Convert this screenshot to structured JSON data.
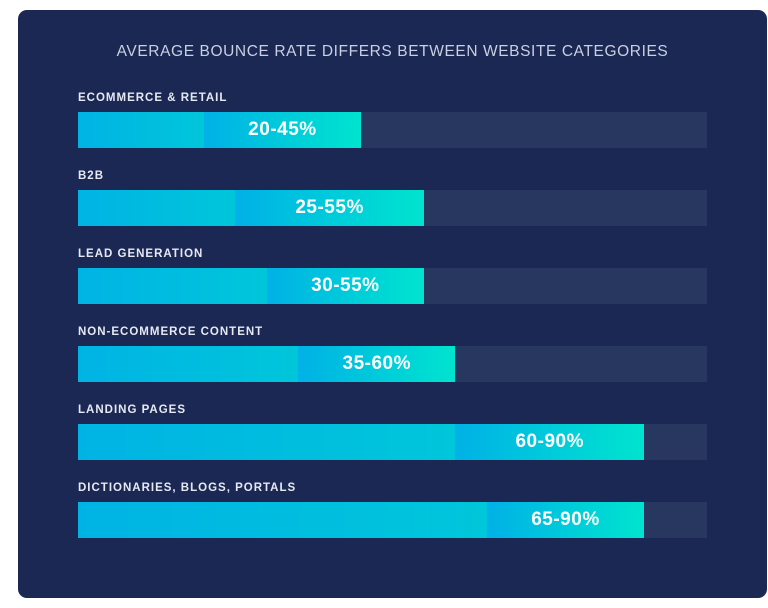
{
  "chart_data": {
    "type": "bar",
    "subtype": "horizontal-range",
    "title": "AVERAGE BOUNCE RATE DIFFERS BETWEEN WEBSITE CATEGORIES",
    "xlim": [
      0,
      100
    ],
    "unit": "%",
    "categories": [
      "ECOMMERCE & RETAIL",
      "B2B",
      "LEAD GENERATION",
      "NON-ECOMMERCE CONTENT",
      "LANDING PAGES",
      "DICTIONARIES, BLOGS, PORTALS"
    ],
    "ranges": [
      [
        20,
        45
      ],
      [
        25,
        55
      ],
      [
        30,
        55
      ],
      [
        35,
        60
      ],
      [
        60,
        90
      ],
      [
        65,
        90
      ]
    ],
    "labels": [
      "20-45%",
      "25-55%",
      "30-55%",
      "35-60%",
      "60-90%",
      "65-90%"
    ],
    "colors": {
      "background": "#1b2854",
      "track": "#283760",
      "range_start": "#00b1e6",
      "range_end": "#00e4cf"
    }
  }
}
